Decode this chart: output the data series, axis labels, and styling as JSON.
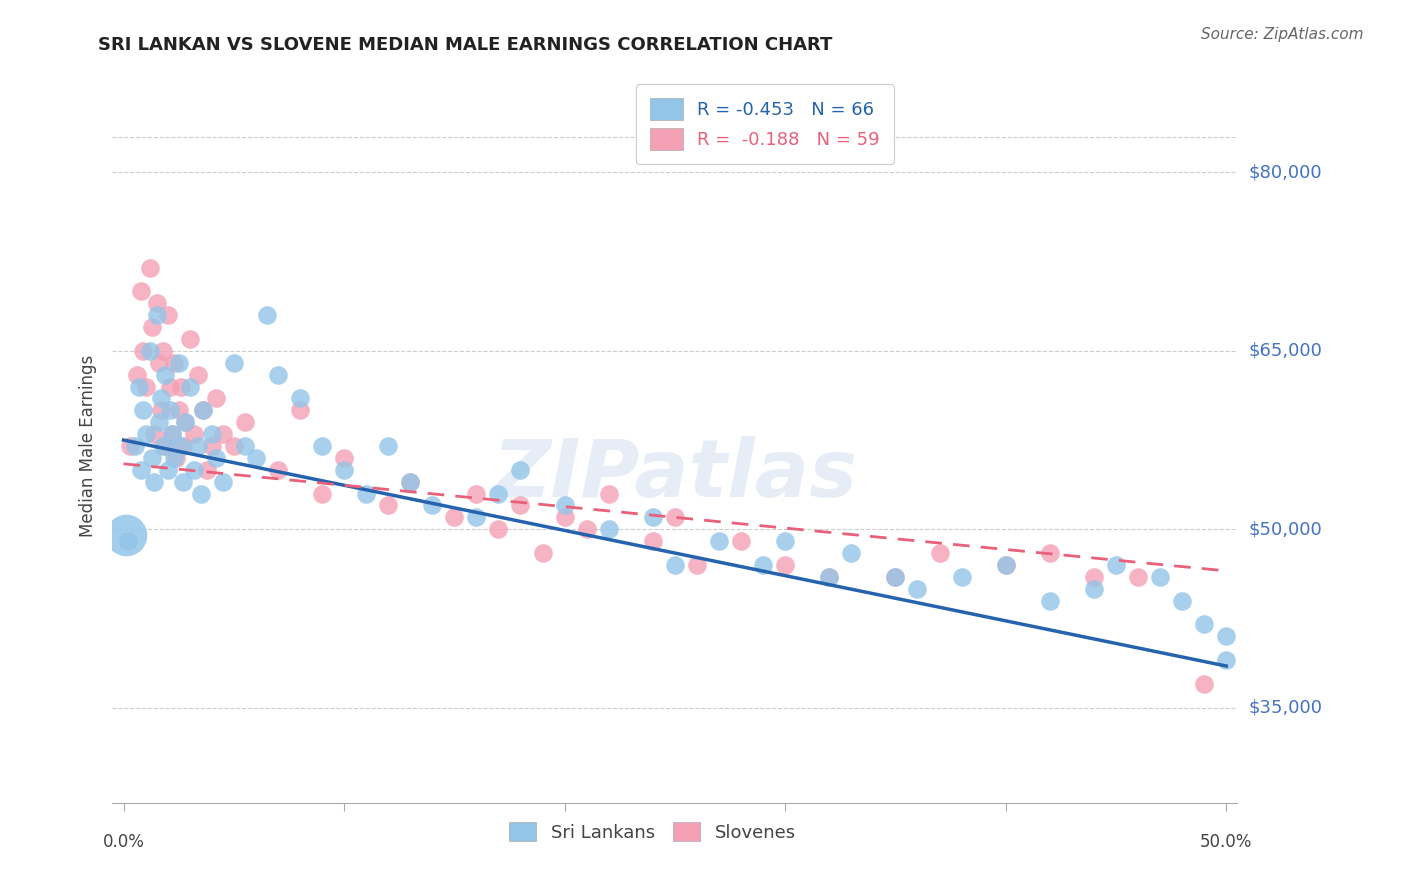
{
  "title": "SRI LANKAN VS SLOVENE MEDIAN MALE EARNINGS CORRELATION CHART",
  "source": "Source: ZipAtlas.com",
  "ylabel": "Median Male Earnings",
  "y_ticks": [
    35000,
    50000,
    65000,
    80000
  ],
  "y_tick_labels": [
    "$35,000",
    "$50,000",
    "$65,000",
    "$80,000"
  ],
  "y_lim": [
    27000,
    87000
  ],
  "x_lim": [
    -0.005,
    0.505
  ],
  "sri_lankan_color": "#92C5E8",
  "slovene_color": "#F4A0B5",
  "sri_lankan_line_color": "#2563AE",
  "slovene_line_color": "#E8607A",
  "sri_lankan_R": -0.453,
  "sri_lankan_N": 66,
  "slovene_R": -0.188,
  "slovene_N": 59,
  "legend_label_1": "Sri Lankans",
  "legend_label_2": "Slovenes",
  "watermark": "ZIPatlas",
  "sri_lankans_x": [
    0.002,
    0.005,
    0.007,
    0.008,
    0.009,
    0.01,
    0.012,
    0.013,
    0.014,
    0.015,
    0.016,
    0.017,
    0.018,
    0.019,
    0.02,
    0.021,
    0.022,
    0.023,
    0.025,
    0.026,
    0.027,
    0.028,
    0.03,
    0.032,
    0.034,
    0.035,
    0.036,
    0.04,
    0.042,
    0.045,
    0.05,
    0.055,
    0.06,
    0.065,
    0.07,
    0.08,
    0.09,
    0.1,
    0.11,
    0.12,
    0.13,
    0.14,
    0.16,
    0.17,
    0.18,
    0.2,
    0.22,
    0.24,
    0.25,
    0.27,
    0.29,
    0.3,
    0.32,
    0.33,
    0.35,
    0.36,
    0.38,
    0.4,
    0.42,
    0.44,
    0.45,
    0.47,
    0.48,
    0.49,
    0.5,
    0.5
  ],
  "sri_lankans_y": [
    49000,
    57000,
    62000,
    55000,
    60000,
    58000,
    65000,
    56000,
    54000,
    68000,
    59000,
    61000,
    57000,
    63000,
    55000,
    60000,
    58000,
    56000,
    64000,
    57000,
    54000,
    59000,
    62000,
    55000,
    57000,
    53000,
    60000,
    58000,
    56000,
    54000,
    64000,
    57000,
    56000,
    68000,
    63000,
    61000,
    57000,
    55000,
    53000,
    57000,
    54000,
    52000,
    51000,
    53000,
    55000,
    52000,
    50000,
    51000,
    47000,
    49000,
    47000,
    49000,
    46000,
    48000,
    46000,
    45000,
    46000,
    47000,
    44000,
    45000,
    47000,
    46000,
    44000,
    42000,
    39000,
    41000
  ],
  "slovenes_x": [
    0.003,
    0.006,
    0.008,
    0.009,
    0.01,
    0.012,
    0.013,
    0.014,
    0.015,
    0.016,
    0.017,
    0.018,
    0.019,
    0.02,
    0.021,
    0.022,
    0.023,
    0.024,
    0.025,
    0.026,
    0.027,
    0.028,
    0.03,
    0.032,
    0.034,
    0.036,
    0.038,
    0.04,
    0.042,
    0.045,
    0.05,
    0.055,
    0.07,
    0.08,
    0.09,
    0.1,
    0.12,
    0.13,
    0.15,
    0.16,
    0.17,
    0.18,
    0.19,
    0.2,
    0.21,
    0.22,
    0.24,
    0.25,
    0.26,
    0.28,
    0.3,
    0.32,
    0.35,
    0.37,
    0.4,
    0.42,
    0.44,
    0.46,
    0.49
  ],
  "slovenes_y": [
    57000,
    63000,
    70000,
    65000,
    62000,
    72000,
    67000,
    58000,
    69000,
    64000,
    60000,
    65000,
    57000,
    68000,
    62000,
    58000,
    64000,
    56000,
    60000,
    62000,
    57000,
    59000,
    66000,
    58000,
    63000,
    60000,
    55000,
    57000,
    61000,
    58000,
    57000,
    59000,
    55000,
    60000,
    53000,
    56000,
    52000,
    54000,
    51000,
    53000,
    50000,
    52000,
    48000,
    51000,
    50000,
    53000,
    49000,
    51000,
    47000,
    49000,
    47000,
    46000,
    46000,
    48000,
    47000,
    48000,
    46000,
    46000,
    37000
  ]
}
